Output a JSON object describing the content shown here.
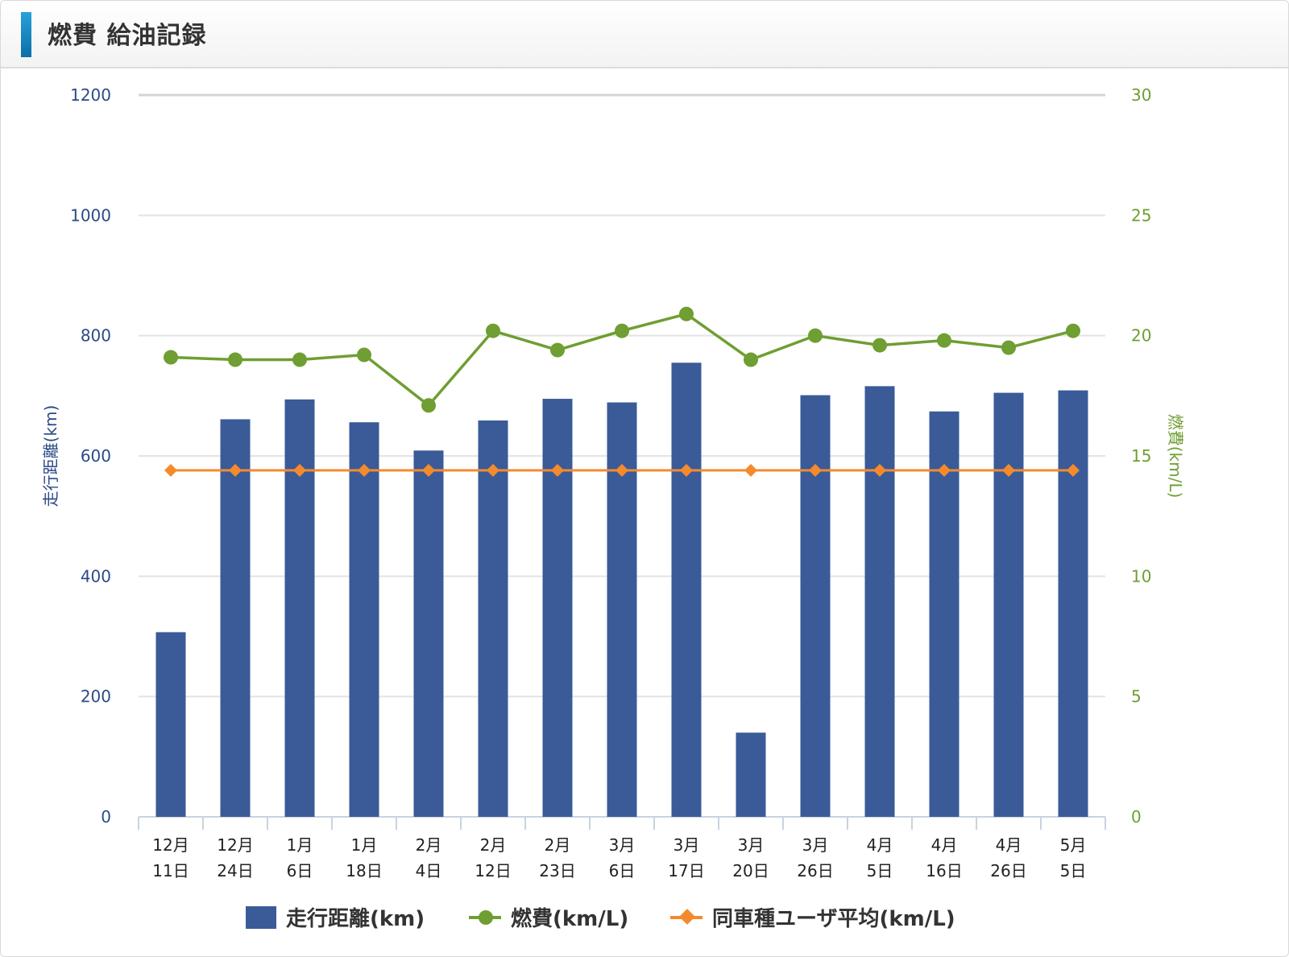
{
  "header": {
    "title": "燃費 給油記録"
  },
  "colors": {
    "bars": "#3a5b98",
    "fuel": "#6f9e32",
    "avg": "#f58a2c",
    "left_axis": "#2b4a86",
    "right_axis": "#6f9e32"
  },
  "chart_data": {
    "type": "bar",
    "categories": [
      [
        "12月",
        "11日"
      ],
      [
        "12月",
        "24日"
      ],
      [
        "1月",
        "6日"
      ],
      [
        "1月",
        "18日"
      ],
      [
        "2月",
        "4日"
      ],
      [
        "2月",
        "12日"
      ],
      [
        "2月",
        "23日"
      ],
      [
        "3月",
        "6日"
      ],
      [
        "3月",
        "17日"
      ],
      [
        "3月",
        "20日"
      ],
      [
        "3月",
        "26日"
      ],
      [
        "4月",
        "5日"
      ],
      [
        "4月",
        "16日"
      ],
      [
        "4月",
        "26日"
      ],
      [
        "5月",
        "5日"
      ]
    ],
    "series": [
      {
        "name": "走行距離(km)",
        "type": "bar",
        "axis": "left",
        "values": [
          307,
          661,
          694,
          656,
          609,
          659,
          695,
          689,
          755,
          140,
          701,
          716,
          674,
          705,
          709
        ]
      },
      {
        "name": "燃費(km/L)",
        "type": "line",
        "axis": "right",
        "values": [
          19.1,
          19.0,
          19.0,
          19.2,
          17.1,
          20.2,
          19.4,
          20.2,
          20.9,
          19.0,
          20.0,
          19.6,
          19.8,
          19.5,
          20.2
        ]
      },
      {
        "name": "同車種ユーザ平均(km/L)",
        "type": "line",
        "axis": "right",
        "values": [
          14.4,
          14.4,
          14.4,
          14.4,
          14.4,
          14.4,
          14.4,
          14.4,
          14.4,
          14.4,
          14.4,
          14.4,
          14.4,
          14.4,
          14.4
        ]
      }
    ],
    "ylabel": "走行距離(km)",
    "y2label": "燃費(km/L)",
    "ylim": [
      0,
      1200
    ],
    "y2lim": [
      0,
      30
    ],
    "yticks": [
      "0",
      "200",
      "400",
      "600",
      "800",
      "1000",
      "1200"
    ],
    "y2ticks": [
      "0",
      "5",
      "10",
      "15",
      "20",
      "25",
      "30"
    ],
    "grid": true,
    "legend_position": "bottom"
  }
}
